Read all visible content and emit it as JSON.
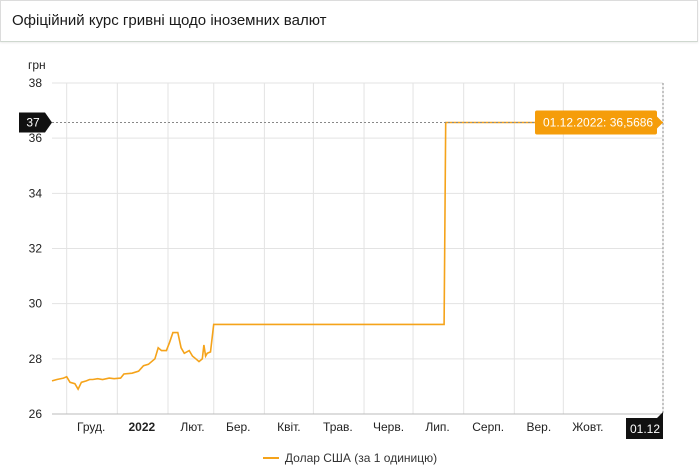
{
  "header": {
    "title": "Офіційний курс гривні щодо іноземних валют"
  },
  "colors": {
    "series": "#f5a31a",
    "grid": "#e3e3e3",
    "marker_bg": "#111111",
    "tooltip_bg": "#f59d0a"
  },
  "chart_data": {
    "type": "line",
    "title": "",
    "ylabel": "грн",
    "xlabel": "",
    "ylim": [
      26,
      38
    ],
    "grid": true,
    "legend_position": "bottom",
    "y_ticks": [
      26,
      28,
      30,
      32,
      34,
      36,
      38
    ],
    "x_tick_labels": [
      "Груд.",
      "2022",
      "Лют.",
      "Бер.",
      "Квіт.",
      "Трав.",
      "Черв.",
      "Лип.",
      "Серп.",
      "Вер.",
      "Жовт."
    ],
    "x_tick_dates": [
      "2021-12-01",
      "2022-01-01",
      "2022-02-01",
      "2022-03-01",
      "2022-04-01",
      "2022-05-01",
      "2022-06-01",
      "2022-07-01",
      "2022-08-01",
      "2022-09-01",
      "2022-10-01"
    ],
    "x_range": [
      "2021-11-22",
      "2022-12-01"
    ],
    "crosshair": {
      "y_label": "37",
      "x_label": "01.12"
    },
    "tooltip": "01.12.2022: 36,5686",
    "series": [
      {
        "name": "Долар США (за 1 одиницю)",
        "points": [
          [
            "2021-11-22",
            27.2
          ],
          [
            "2021-11-25",
            27.25
          ],
          [
            "2021-11-29",
            27.3
          ],
          [
            "2021-12-01",
            27.35
          ],
          [
            "2021-12-03",
            27.15
          ],
          [
            "2021-12-06",
            27.1
          ],
          [
            "2021-12-08",
            26.9
          ],
          [
            "2021-12-10",
            27.15
          ],
          [
            "2021-12-13",
            27.2
          ],
          [
            "2021-12-15",
            27.25
          ],
          [
            "2021-12-17",
            27.25
          ],
          [
            "2021-12-20",
            27.28
          ],
          [
            "2021-12-23",
            27.25
          ],
          [
            "2021-12-27",
            27.3
          ],
          [
            "2021-12-30",
            27.28
          ],
          [
            "2022-01-03",
            27.3
          ],
          [
            "2022-01-05",
            27.45
          ],
          [
            "2022-01-10",
            27.48
          ],
          [
            "2022-01-14",
            27.55
          ],
          [
            "2022-01-17",
            27.75
          ],
          [
            "2022-01-20",
            27.8
          ],
          [
            "2022-01-24",
            28.0
          ],
          [
            "2022-01-26",
            28.4
          ],
          [
            "2022-01-28",
            28.3
          ],
          [
            "2022-01-31",
            28.3
          ],
          [
            "2022-02-02",
            28.6
          ],
          [
            "2022-02-04",
            28.95
          ],
          [
            "2022-02-07",
            28.95
          ],
          [
            "2022-02-09",
            28.4
          ],
          [
            "2022-02-11",
            28.2
          ],
          [
            "2022-02-14",
            28.3
          ],
          [
            "2022-02-16",
            28.1
          ],
          [
            "2022-02-18",
            28.0
          ],
          [
            "2022-02-20",
            27.9
          ],
          [
            "2022-02-22",
            28.0
          ],
          [
            "2022-02-23",
            28.5
          ],
          [
            "2022-02-24",
            28.1
          ],
          [
            "2022-02-25",
            28.2
          ],
          [
            "2022-02-27",
            28.25
          ],
          [
            "2022-03-01",
            29.25
          ],
          [
            "2022-07-20",
            29.25
          ],
          [
            "2022-07-21",
            36.5686
          ],
          [
            "2022-12-01",
            36.5686
          ]
        ]
      }
    ]
  }
}
